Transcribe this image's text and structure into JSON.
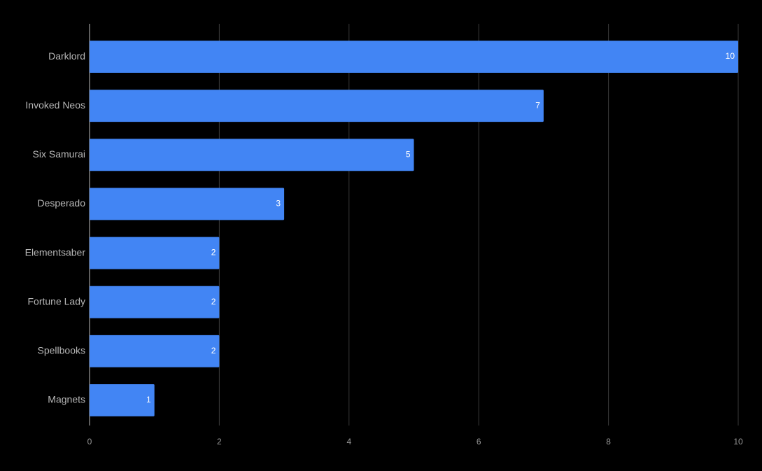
{
  "chart_data": {
    "type": "bar",
    "orientation": "horizontal",
    "categories": [
      "Darklord",
      "Invoked Neos",
      "Six Samurai",
      "Desperado",
      "Elementsaber",
      "Fortune Lady",
      "Spellbooks",
      "Magnets"
    ],
    "values": [
      10,
      7,
      5,
      3,
      2,
      2,
      2,
      1
    ],
    "color": "#4285f4",
    "xlim": [
      0,
      10
    ],
    "xticks": [
      0,
      2,
      4,
      6,
      8,
      10
    ],
    "grid": true
  }
}
